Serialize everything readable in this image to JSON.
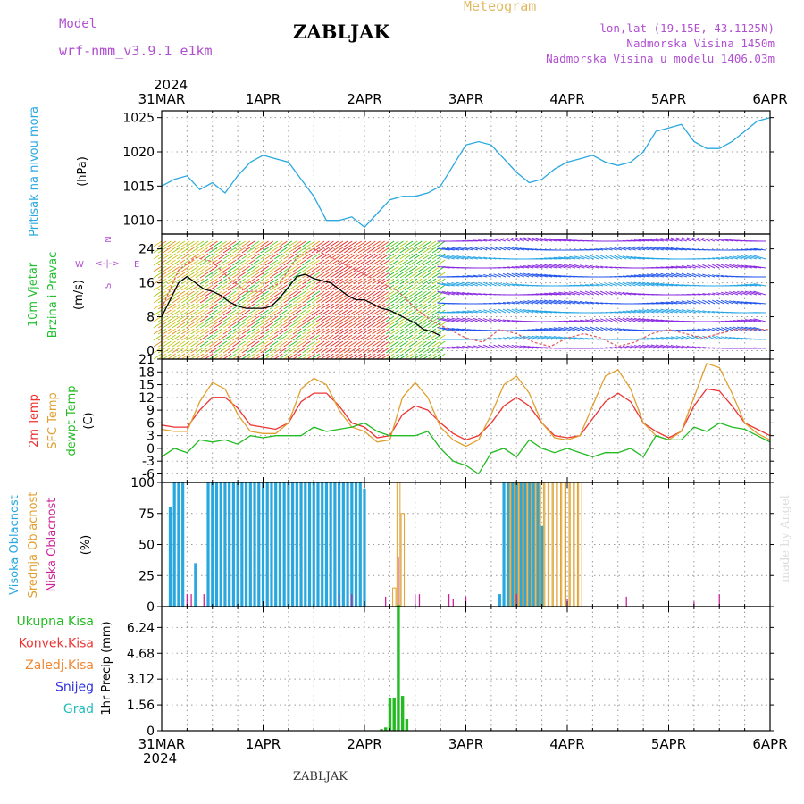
{
  "header": {
    "model_label": "Model",
    "model_value": "wrf-nmm_v3.9.1  e1km",
    "station": "ZABLJAK",
    "meteogram_label": "Meteogram",
    "location": "lon,lat (19.15E, 43.1125N)",
    "altitude": "Nadmorska Visina 1450m",
    "altitude_model": "Nadmorska Visina u modelu 1406.03m",
    "footer_station": "ZABLJAK",
    "watermark": "made by Angel"
  },
  "time_axis": {
    "year": "2024",
    "labels": [
      "31MAR",
      "1APR",
      "2APR",
      "3APR",
      "4APR",
      "5APR",
      "6APR"
    ],
    "start": "2024-03-31T00:00",
    "end": "2024-04-06T00:00"
  },
  "panels": {
    "pressure": {
      "ylabel": [
        "Pritisak na nivou mora"
      ],
      "unit": "(hPa)",
      "color": "#29a8e0"
    },
    "wind": {
      "ylabel": [
        {
          "text": "10m Vjetar",
          "color": "#1fbf2f"
        },
        {
          "text": "Brzina i Pravac",
          "color": "#1fbf2f"
        }
      ],
      "unit": "(m/s)",
      "compass": {
        "w": "W",
        "e": "E",
        "n": "N",
        "s": "S",
        "arrow": "<-|->"
      }
    },
    "temperature": {
      "ylabel": [
        {
          "text": "2m Temp",
          "color": "#ee3333"
        },
        {
          "text": "SFC Temp",
          "color": "#e0a030"
        },
        {
          "text": "dewpt Temp",
          "color": "#22bb22"
        }
      ],
      "unit": "(C)"
    },
    "cloud": {
      "ylabel": [
        {
          "text": "Visoka Oblacnost",
          "color": "#29a8e0"
        },
        {
          "text": "Srednja Oblacnost",
          "color": "#e0a030"
        },
        {
          "text": "Niska Oblacnost",
          "color": "#cc2299"
        }
      ],
      "unit": "(%)"
    },
    "precip": {
      "legend": [
        {
          "text": "Ukupna Kisa",
          "color": "#22bb22"
        },
        {
          "text": "Konvek.Kisa",
          "color": "#ee3333"
        },
        {
          "text": "Zaledj.Kisa",
          "color": "#ee8833"
        },
        {
          "text": "Snijeg",
          "color": "#3333dd"
        },
        {
          "text": "Grad",
          "color": "#22bbbb"
        }
      ],
      "unit": "1hr Precip (mm)"
    }
  },
  "chart_data": [
    {
      "type": "line",
      "title": "",
      "ylabel": "Pritisak na nivou mora (hPa)",
      "ylim": [
        1008,
        1026
      ],
      "yticks": [
        1010,
        1015,
        1020,
        1025
      ],
      "grid": true,
      "series": [
        {
          "name": "Pritisak na nivou mora",
          "color": "#29a8e0",
          "x": [
            0,
            3,
            6,
            9,
            12,
            15,
            18,
            21,
            24,
            27,
            30,
            33,
            36,
            39,
            42,
            45,
            48,
            51,
            54,
            57,
            60,
            63,
            66,
            69,
            72,
            75,
            78,
            81,
            84,
            87,
            90,
            93,
            96,
            99,
            102,
            105,
            108,
            111,
            114,
            117,
            120,
            123,
            126,
            129,
            132,
            135,
            138,
            141,
            144
          ],
          "values": [
            1015,
            1016,
            1016.5,
            1014.5,
            1015.5,
            1014,
            1016.5,
            1018.5,
            1019.5,
            1019,
            1018.5,
            1016,
            1013.5,
            1010,
            1010,
            1010.5,
            1009,
            1011,
            1013,
            1013.5,
            1013.5,
            1014,
            1015,
            1018,
            1021,
            1021.5,
            1021,
            1019,
            1017,
            1015.5,
            1016,
            1017.5,
            1018.5,
            1019,
            1019.5,
            1018.5,
            1018,
            1018.5,
            1020,
            1023,
            1023.5,
            1024,
            1021.5,
            1020.5,
            1020.5,
            1021.5,
            1023,
            1024.5,
            1025
          ]
        }
      ]
    },
    {
      "type": "line",
      "ylabel": "10m Vjetar Brzina i Pravac (m/s)",
      "ylim": [
        -2,
        27.5
      ],
      "yticks": [
        0,
        8,
        16,
        24
      ],
      "grid": true,
      "series": [
        {
          "name": "speed",
          "color": "#000000",
          "x": [
            0,
            2,
            4,
            6,
            8,
            10,
            12,
            14,
            16,
            18,
            20,
            22,
            24,
            26,
            28,
            30,
            32,
            34,
            36,
            38,
            40,
            42,
            44,
            46,
            48,
            50,
            52,
            54,
            56,
            58,
            60,
            62,
            64,
            66
          ],
          "values": [
            8,
            12,
            16,
            17.5,
            16,
            14.5,
            14,
            13,
            11.5,
            10.5,
            10,
            10,
            10,
            10.5,
            12.5,
            15,
            17.5,
            18,
            17,
            16.5,
            16,
            14.5,
            13,
            12,
            12,
            11,
            10,
            9.5,
            8.5,
            7.5,
            6.5,
            5,
            4.5,
            3.5
          ]
        },
        {
          "name": "gust",
          "color": "#e06060",
          "x": [
            0,
            4,
            8,
            12,
            16,
            20,
            24,
            28,
            32,
            36,
            40,
            44,
            48,
            52,
            56,
            60,
            64,
            68,
            72,
            76,
            80,
            84,
            88,
            92,
            96,
            100,
            104,
            108,
            112,
            116,
            120,
            124,
            128,
            132,
            136,
            140,
            144
          ],
          "values": [
            10,
            19,
            22,
            21,
            17,
            14,
            14,
            16,
            22,
            24,
            22,
            20,
            18,
            16,
            14,
            10,
            7,
            5,
            3,
            2,
            5,
            4,
            2,
            1,
            3,
            4,
            3,
            1,
            2,
            4,
            5,
            4,
            3,
            4,
            5,
            5,
            5
          ]
        }
      ]
    },
    {
      "type": "line",
      "ylabel": "Temp (C)",
      "ylim": [
        -8,
        21
      ],
      "yticks": [
        -6,
        -3,
        0,
        3,
        6,
        9,
        12,
        15,
        18,
        21
      ],
      "grid": true,
      "series": [
        {
          "name": "2m Temp",
          "color": "#ee3333",
          "x": [
            0,
            3,
            6,
            9,
            12,
            15,
            18,
            21,
            24,
            27,
            30,
            33,
            36,
            39,
            42,
            45,
            48,
            51,
            54,
            57,
            60,
            63,
            66,
            69,
            72,
            75,
            78,
            81,
            84,
            87,
            90,
            93,
            96,
            99,
            102,
            105,
            108,
            111,
            114,
            117,
            120,
            123,
            126,
            129,
            132,
            135,
            138,
            141,
            144
          ],
          "values": [
            5.5,
            5,
            5,
            9,
            12,
            12,
            9.5,
            5.5,
            5,
            4.5,
            6,
            11,
            13,
            13,
            10,
            6,
            5,
            2.5,
            3,
            8,
            10,
            9,
            6,
            3.5,
            2,
            3,
            6,
            10,
            12,
            10,
            6,
            3,
            2.5,
            3,
            7,
            11,
            13,
            11,
            6,
            4,
            2.5,
            4,
            10,
            14,
            13.5,
            10,
            6,
            4.5,
            3
          ]
        },
        {
          "name": "SFC Temp",
          "color": "#e0a030",
          "x": [
            0,
            3,
            6,
            9,
            12,
            15,
            18,
            21,
            24,
            27,
            30,
            33,
            36,
            39,
            42,
            45,
            48,
            51,
            54,
            57,
            60,
            63,
            66,
            69,
            72,
            75,
            78,
            81,
            84,
            87,
            90,
            93,
            96,
            99,
            102,
            105,
            108,
            111,
            114,
            117,
            120,
            123,
            126,
            129,
            132,
            135,
            138,
            141,
            144
          ],
          "values": [
            4.5,
            4,
            4,
            11,
            15.5,
            14,
            8,
            4,
            3.5,
            3.5,
            6,
            14,
            16.5,
            15,
            9,
            5,
            4,
            1.5,
            2,
            12,
            15.5,
            12,
            5,
            2,
            0.5,
            2,
            8,
            15,
            17,
            13,
            6,
            2.5,
            2,
            3,
            10,
            17,
            18.5,
            14,
            6,
            3,
            2,
            4,
            12,
            20,
            19,
            13,
            6,
            3.5,
            2
          ]
        },
        {
          "name": "dewpt Temp",
          "color": "#22bb22",
          "x": [
            0,
            3,
            6,
            9,
            12,
            15,
            18,
            21,
            24,
            27,
            30,
            33,
            36,
            39,
            42,
            45,
            48,
            51,
            54,
            57,
            60,
            63,
            66,
            69,
            72,
            75,
            78,
            81,
            84,
            87,
            90,
            93,
            96,
            99,
            102,
            105,
            108,
            111,
            114,
            117,
            120,
            123,
            126,
            129,
            132,
            135,
            138,
            141,
            144
          ],
          "values": [
            -2,
            0,
            -1,
            2,
            1.5,
            2,
            1,
            3,
            2.5,
            3,
            3,
            3,
            5,
            4,
            4.5,
            5,
            6,
            4,
            3,
            3,
            3,
            4,
            0,
            -3,
            -4,
            -6,
            -1,
            0,
            -2,
            2,
            0,
            -1,
            0,
            -1,
            -2,
            -1,
            -1,
            0,
            -2,
            3,
            2,
            2,
            5,
            4,
            6,
            5,
            4.5,
            3,
            1.5
          ]
        }
      ]
    },
    {
      "type": "bar",
      "ylabel": "Oblacnost (%)",
      "ylim": [
        0,
        100
      ],
      "yticks": [
        0,
        25,
        50,
        75,
        100
      ],
      "grid": true,
      "series": [
        {
          "name": "Visoka Oblacnost",
          "color": "#29a8e0",
          "x": [
            2,
            3,
            4,
            5,
            8,
            11,
            12,
            13,
            14,
            15,
            16,
            17,
            18,
            19,
            20,
            21,
            22,
            23,
            24,
            25,
            26,
            27,
            28,
            29,
            30,
            31,
            32,
            33,
            34,
            35,
            36,
            37,
            38,
            39,
            40,
            41,
            42,
            43,
            44,
            45,
            46,
            47,
            48,
            80,
            81,
            82,
            83,
            84,
            85,
            86,
            87,
            88,
            89,
            90
          ],
          "values": [
            80,
            100,
            100,
            100,
            35,
            100,
            100,
            100,
            100,
            100,
            100,
            100,
            100,
            100,
            100,
            100,
            100,
            100,
            100,
            100,
            100,
            100,
            100,
            100,
            100,
            100,
            100,
            100,
            100,
            100,
            100,
            100,
            100,
            100,
            100,
            100,
            100,
            100,
            100,
            100,
            100,
            100,
            95,
            10,
            100,
            100,
            100,
            100,
            100,
            100,
            100,
            100,
            100,
            65
          ]
        },
        {
          "name": "Srednja Oblacnost",
          "color": "#e0a030",
          "x": [
            55,
            56,
            57,
            82,
            83,
            84,
            85,
            86,
            87,
            88,
            89,
            90,
            91,
            92,
            93,
            94,
            95,
            96,
            97,
            98,
            99
          ],
          "values": [
            15,
            100,
            75,
            100,
            100,
            100,
            100,
            100,
            100,
            100,
            100,
            100,
            100,
            100,
            100,
            100,
            100,
            100,
            100,
            100,
            100
          ]
        },
        {
          "name": "Niska Oblacnost",
          "color": "#cc2299",
          "x": [
            6,
            7,
            10,
            42,
            45,
            53,
            56,
            60,
            61,
            68,
            69,
            72,
            84,
            96,
            110,
            126,
            132
          ],
          "values": [
            10,
            10,
            10,
            10,
            10,
            8,
            40,
            10,
            10,
            10,
            6,
            8,
            10,
            6,
            8,
            4,
            10
          ]
        }
      ]
    },
    {
      "type": "bar",
      "ylabel": "1hr Precip (mm)",
      "ylim": [
        0,
        7.5
      ],
      "yticks": [
        0,
        1.56,
        3.12,
        4.68,
        6.24
      ],
      "grid": true,
      "series": [
        {
          "name": "Ukupna Kisa",
          "color": "#22bb22",
          "x": [
            52,
            53,
            54,
            55,
            56,
            57,
            58
          ],
          "values": [
            0.1,
            0.2,
            2.0,
            2.0,
            7.6,
            2.1,
            0.7
          ]
        }
      ]
    }
  ]
}
